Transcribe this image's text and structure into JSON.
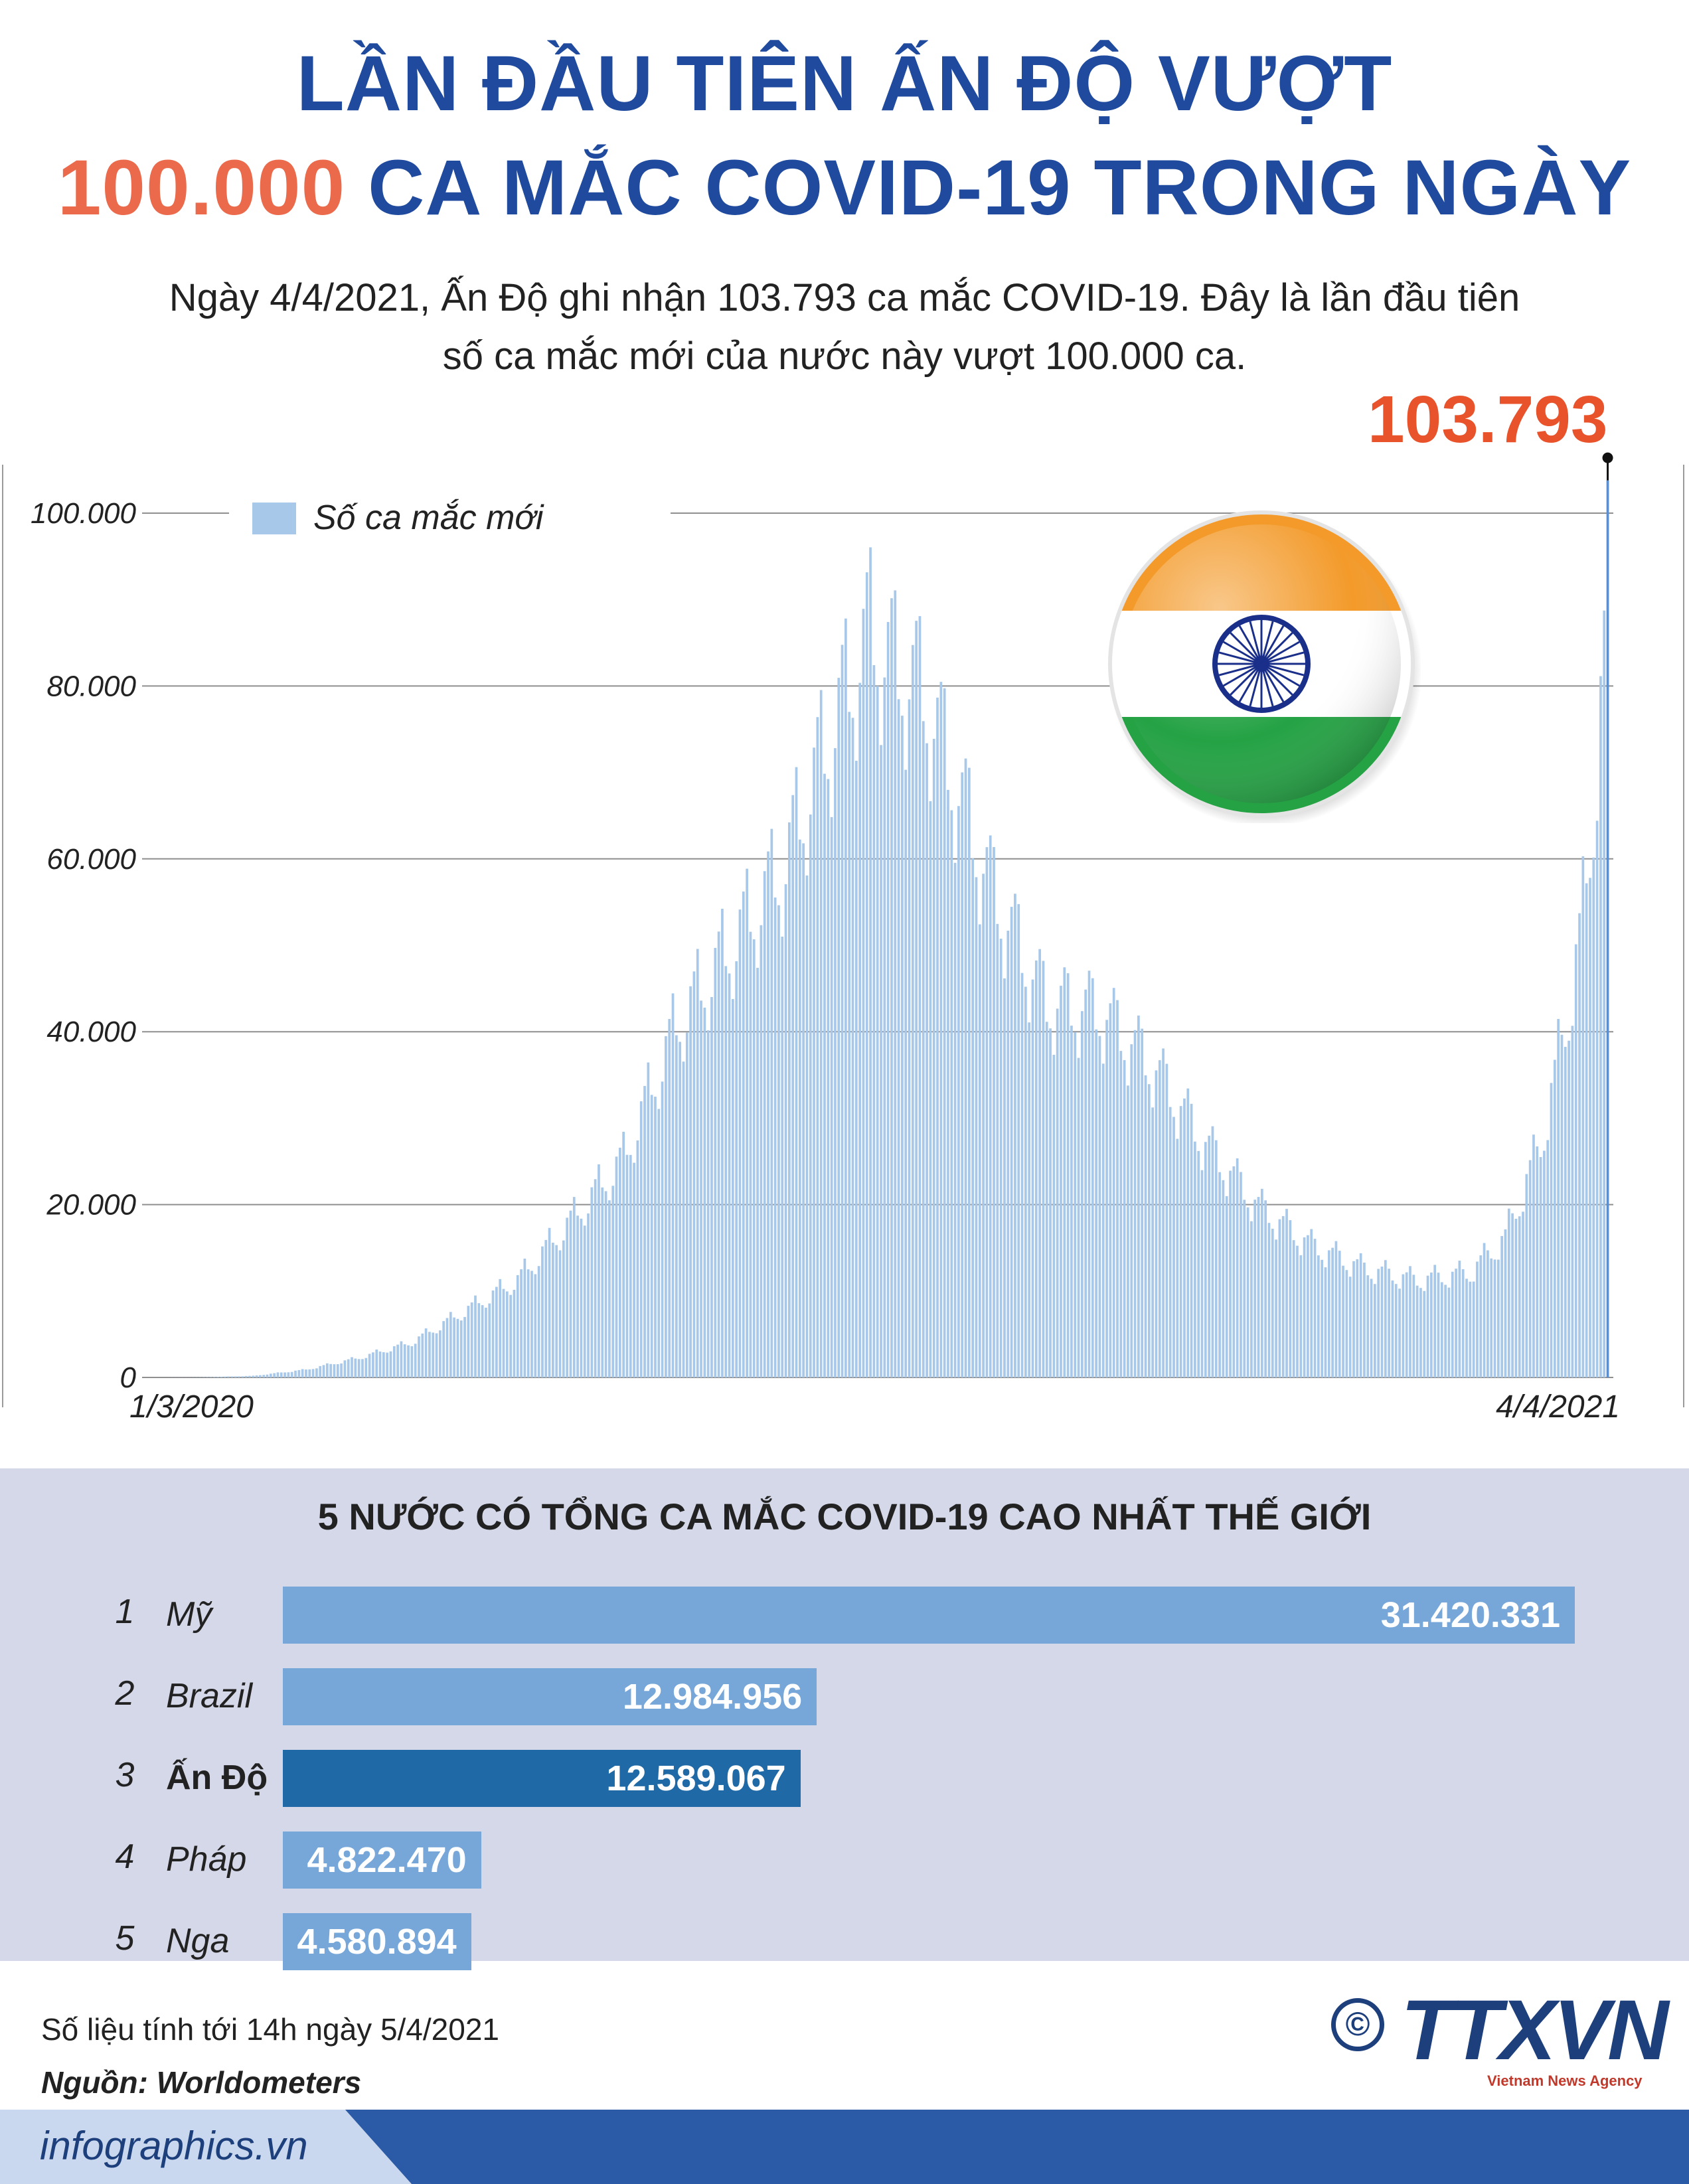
{
  "header": {
    "title_line1": "LẦN ĐẦU TIÊN ẤN ĐỘ VƯỢT",
    "title_highlight": "100.000",
    "title_line2_rest": " CA MẮC COVID-19 TRONG NGÀY",
    "subtitle_line1": "Ngày 4/4/2021, Ấn Độ ghi nhận 103.793 ca mắc COVID-19. Đây là lần đầu tiên",
    "subtitle_line2": "số ca mắc mới của nước này vượt 100.000 ca."
  },
  "colors": {
    "title_blue": "#1f4a9e",
    "highlight_orange": "#ea6a4b",
    "bar_light": "#a8c8ea",
    "bar_mid": "#77a7d9",
    "bar_dark": "#1f6aa6"
  },
  "chart_data": [
    {
      "type": "bar",
      "title": "Số ca mắc mới",
      "legend": "Số ca mắc mới",
      "peak_label": "103.793",
      "x_start_label": "1/3/2020",
      "x_end_label": "4/4/2021",
      "ylim": [
        0,
        100000
      ],
      "yticks": [
        0,
        20000,
        40000,
        60000,
        80000,
        100000
      ],
      "ytick_labels": [
        "0",
        "20.000",
        "40.000",
        "60.000",
        "80.000",
        "100.000"
      ],
      "anchors": [
        {
          "day": 0,
          "value": 0
        },
        {
          "day": 15,
          "value": 20
        },
        {
          "day": 30,
          "value": 200
        },
        {
          "day": 45,
          "value": 1000
        },
        {
          "day": 60,
          "value": 2500
        },
        {
          "day": 75,
          "value": 4500
        },
        {
          "day": 90,
          "value": 8500
        },
        {
          "day": 105,
          "value": 12500
        },
        {
          "day": 120,
          "value": 20000
        },
        {
          "day": 135,
          "value": 28000
        },
        {
          "day": 150,
          "value": 45000
        },
        {
          "day": 165,
          "value": 55000
        },
        {
          "day": 180,
          "value": 65000
        },
        {
          "day": 190,
          "value": 78000
        },
        {
          "day": 200,
          "value": 90000
        },
        {
          "day": 205,
          "value": 96000
        },
        {
          "day": 210,
          "value": 92000
        },
        {
          "day": 220,
          "value": 88000
        },
        {
          "day": 230,
          "value": 75000
        },
        {
          "day": 240,
          "value": 62000
        },
        {
          "day": 255,
          "value": 48000
        },
        {
          "day": 270,
          "value": 47000
        },
        {
          "day": 285,
          "value": 40000
        },
        {
          "day": 300,
          "value": 30000
        },
        {
          "day": 315,
          "value": 22000
        },
        {
          "day": 330,
          "value": 17000
        },
        {
          "day": 345,
          "value": 14000
        },
        {
          "day": 360,
          "value": 12500
        },
        {
          "day": 375,
          "value": 13500
        },
        {
          "day": 385,
          "value": 18000
        },
        {
          "day": 395,
          "value": 30000
        },
        {
          "day": 402,
          "value": 45000
        },
        {
          "day": 408,
          "value": 62000
        },
        {
          "day": 411,
          "value": 80000
        },
        {
          "day": 413,
          "value": 93000
        },
        {
          "day": 414,
          "value": 103793
        }
      ]
    },
    {
      "type": "bar",
      "title": "5 NƯỚC CÓ TỔNG CA MẮC COVID-19 CAO NHẤT THẾ GIỚI",
      "categories": [
        "Mỹ",
        "Brazil",
        "Ấn Độ",
        "Pháp",
        "Nga"
      ],
      "ranks": [
        "1",
        "2",
        "3",
        "4",
        "5"
      ],
      "values": [
        31420331,
        12984956,
        12589067,
        4822470,
        4580894
      ],
      "value_labels": [
        "31.420.331",
        "12.984.956",
        "12.589.067",
        "4.822.470",
        "4.580.894"
      ],
      "highlight": "Ấn Độ"
    }
  ],
  "footer": {
    "note": "Số liệu tính tới 14h ngày 5/4/2021",
    "source_label": "Nguồn:",
    "source_value": " Worldometers",
    "site": "infographics.vn",
    "copyright": "©",
    "logo": "TTXVN",
    "logo_sub": "Vietnam News Agency"
  }
}
